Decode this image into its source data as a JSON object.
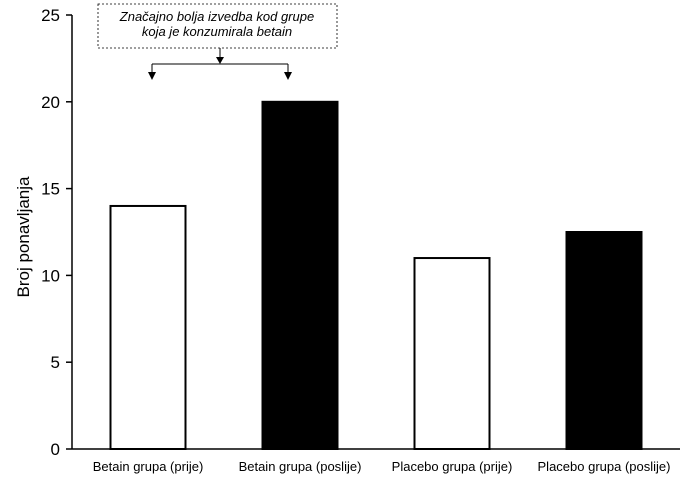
{
  "chart_data": {
    "type": "bar",
    "categories": [
      "Betain grupa (prije)",
      "Betain grupa (poslije)",
      "Placebo grupa (prije)",
      "Placebo grupa (poslije)"
    ],
    "values": [
      14,
      20,
      11,
      12.5
    ],
    "bar_colors": [
      "#ffffff",
      "#000000",
      "#ffffff",
      "#000000"
    ],
    "ylabel": "Broj ponavljanja",
    "ylim": [
      0,
      25
    ],
    "yticks": [
      0,
      5,
      10,
      15,
      20,
      25
    ],
    "grid": false,
    "annotation": {
      "lines": [
        "Značajno bolja izvedba kod grupe",
        "koja je konzumirala betain"
      ],
      "targets": [
        0,
        1
      ]
    }
  }
}
